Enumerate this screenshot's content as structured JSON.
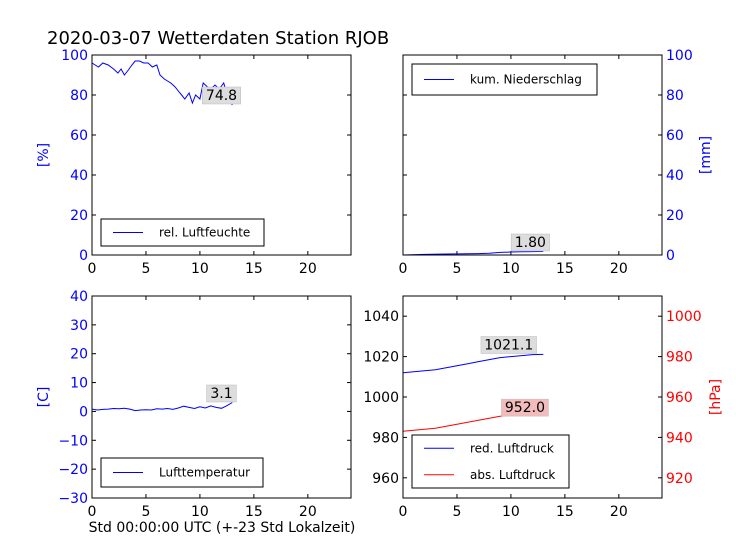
{
  "figure_title": "2020-03-07 Wetterdaten Station RJOB",
  "xlabel": "Std 00:00:00 UTC (+-23 Std Lokalzeit)",
  "colors": {
    "blue": "#0000ff",
    "red": "#ff0000",
    "label_bg": "#dddddd",
    "label_bg_red": "#f2bcbc"
  },
  "chart_data": [
    {
      "type": "line",
      "title": "",
      "xlim": [
        0,
        24
      ],
      "ylim": [
        0,
        100
      ],
      "xticks": [
        "0",
        "5",
        "10",
        "15",
        "20"
      ],
      "yticks": [
        "0",
        "20",
        "40",
        "60",
        "80",
        "100"
      ],
      "ylabel": "[%]",
      "ylabel_side": "left",
      "legend_position": "lower-left",
      "series": [
        {
          "name": "rel. Luftfeuchte",
          "color": "#0000ff",
          "x": [
            0,
            0.3,
            0.6,
            1,
            1.5,
            2,
            2.4,
            2.7,
            3,
            3.3,
            3.7,
            4,
            4.4,
            4.8,
            5.2,
            5.6,
            6,
            6.3,
            6.7,
            7,
            7.3,
            7.7,
            8,
            8.3,
            8.6,
            9,
            9.3,
            9.6,
            10,
            10.3,
            10.7,
            11,
            11.4,
            11.8,
            12.2,
            12.6,
            13
          ],
          "y": [
            96,
            95,
            94,
            96,
            95,
            93,
            91,
            93,
            90,
            92,
            95,
            97,
            97,
            96,
            96,
            94,
            95,
            90,
            88,
            87,
            86,
            84,
            82,
            80,
            78,
            81,
            76,
            80,
            78,
            86,
            84,
            83,
            85,
            83,
            86,
            79,
            75
          ]
        }
      ],
      "value_label": "74.8",
      "value_label_at": [
        12.0,
        78
      ]
    },
    {
      "type": "line",
      "title": "",
      "xlim": [
        0,
        24
      ],
      "ylim": [
        0,
        100
      ],
      "xticks": [
        "0",
        "5",
        "10",
        "15",
        "20"
      ],
      "yticks": [
        "0",
        "20",
        "40",
        "60",
        "80",
        "100"
      ],
      "ylabel": "[mm]",
      "ylabel_side": "right",
      "legend_position": "upper-left",
      "series": [
        {
          "name": "kum. Niederschlag",
          "color": "#0000ff",
          "x": [
            0,
            2,
            4,
            6,
            7,
            8,
            9,
            10,
            11,
            12,
            13
          ],
          "y": [
            0,
            0.3,
            0.5,
            0.6,
            0.7,
            0.9,
            1.3,
            1.5,
            1.6,
            1.7,
            1.8
          ]
        }
      ],
      "value_label": "1.80",
      "value_label_at": [
        11.8,
        4.5
      ]
    },
    {
      "type": "line",
      "title": "",
      "xlim": [
        0,
        24
      ],
      "ylim": [
        -30,
        40
      ],
      "xticks": [
        "0",
        "5",
        "10",
        "15",
        "20"
      ],
      "yticks": [
        "−30",
        "−20",
        "−10",
        "0",
        "10",
        "20",
        "30",
        "40"
      ],
      "ylabel": "[C]",
      "ylabel_side": "left",
      "legend_position": "lower-left",
      "series": [
        {
          "name": "Lufttemperatur",
          "color": "#0000ff",
          "x": [
            0,
            0.5,
            1,
            1.5,
            2,
            2.5,
            3,
            3.5,
            4,
            4.5,
            5,
            5.5,
            6,
            6.5,
            7,
            7.5,
            8,
            8.5,
            9,
            9.5,
            10,
            10.5,
            11,
            11.5,
            12,
            12.5,
            13
          ],
          "y": [
            0.8,
            0.5,
            0.7,
            0.8,
            1,
            0.9,
            1.1,
            0.8,
            0.3,
            0.5,
            0.6,
            0.5,
            0.9,
            0.8,
            1,
            0.7,
            1.2,
            1.8,
            1.4,
            1,
            1.6,
            1.2,
            1.9,
            1.4,
            1.1,
            2,
            3.1
          ]
        }
      ],
      "value_label": "3.1",
      "value_label_at": [
        12.0,
        5
      ]
    },
    {
      "type": "line",
      "title": "",
      "xlim": [
        0,
        24
      ],
      "ylim": [
        950,
        1050
      ],
      "ylim_right": [
        910,
        1010
      ],
      "xticks": [
        "0",
        "5",
        "10",
        "15",
        "20"
      ],
      "yticks": [
        "960",
        "980",
        "1000",
        "1020",
        "1040"
      ],
      "yticks_right": [
        "920",
        "940",
        "960",
        "980",
        "1000"
      ],
      "ylabel": "",
      "ylabel_right": "[hPa]",
      "legend_position": "lower-right",
      "series": [
        {
          "name": "red. Luftdruck",
          "color": "#0000ff",
          "axis": "left",
          "x": [
            0,
            1,
            2,
            3,
            4,
            5,
            6,
            7,
            8,
            9,
            10,
            11,
            12,
            13
          ],
          "y": [
            1012,
            1012.5,
            1013,
            1013.5,
            1014.5,
            1015.5,
            1016.5,
            1017.5,
            1018.5,
            1019.5,
            1020,
            1020.5,
            1021,
            1021.1
          ]
        },
        {
          "name": "abs. Luftdruck",
          "color": "#ff0000",
          "axis": "right",
          "x": [
            0,
            1,
            2,
            3,
            4,
            5,
            6,
            7,
            8,
            9,
            10,
            11,
            12,
            13
          ],
          "y": [
            943,
            943.5,
            944,
            944.5,
            945.5,
            946.5,
            947.5,
            948.5,
            949.5,
            950.5,
            951,
            951.5,
            951.8,
            952.0
          ]
        }
      ],
      "value_label": "1021.1",
      "value_label_at": [
        9.8,
        1024
      ],
      "value_label_right": "952.0",
      "value_label_right_at": [
        11.3,
        953
      ]
    }
  ]
}
